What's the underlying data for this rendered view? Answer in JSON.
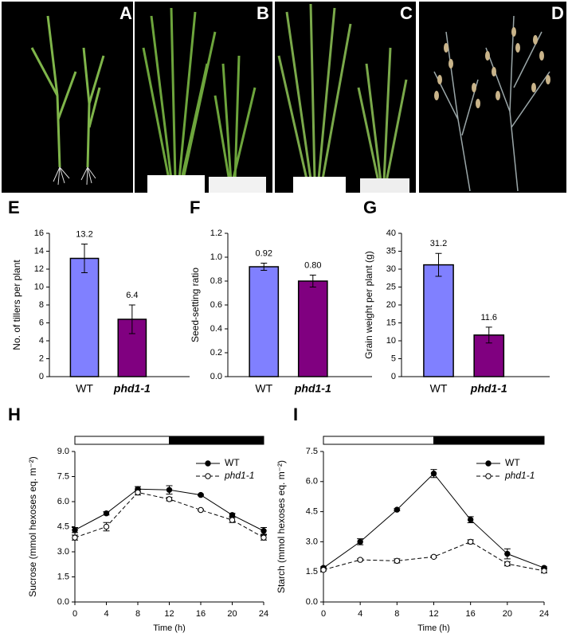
{
  "photo_panels": [
    "A",
    "B",
    "C",
    "D"
  ],
  "chart_data": [
    {
      "type": "bar",
      "panel_label": "E",
      "ylabel": "No. of tillers per plant",
      "categories": [
        "WT",
        "phd1-1"
      ],
      "values": [
        13.2,
        6.4
      ],
      "errors": [
        1.6,
        1.6
      ],
      "colors": [
        "#8080ff",
        "#800080"
      ],
      "ylim": [
        0,
        16
      ],
      "yticks": [
        0,
        2,
        4,
        6,
        8,
        10,
        12,
        14,
        16
      ]
    },
    {
      "type": "bar",
      "panel_label": "F",
      "ylabel": "Seed-setting ratio",
      "categories": [
        "WT",
        "phd1-1"
      ],
      "values": [
        0.92,
        0.8
      ],
      "value_labels": [
        "0.92",
        "0.80"
      ],
      "errors": [
        0.03,
        0.05
      ],
      "colors": [
        "#8080ff",
        "#800080"
      ],
      "ylim": [
        0,
        1.2
      ],
      "yticks": [
        {
          "value": 0,
          "label": "0.0"
        },
        0.2,
        0.4,
        0.6,
        0.8,
        {
          "value": 1,
          "label": "1.0"
        },
        1.2
      ]
    },
    {
      "type": "bar",
      "panel_label": "G",
      "ylabel": "Grain weight per plant (g)",
      "categories": [
        "WT",
        "phd1-1"
      ],
      "values": [
        31.2,
        11.6
      ],
      "errors": [
        3.2,
        2.2
      ],
      "colors": [
        "#8080ff",
        "#800080"
      ],
      "ylim": [
        0,
        40
      ],
      "yticks": [
        0,
        5,
        10,
        15,
        20,
        25,
        30,
        35,
        40
      ]
    },
    {
      "type": "line",
      "panel_label": "H",
      "ylabel": "Sucrose (mmol hexoses eq. m⁻²)",
      "xlabel": "Time (h)",
      "x": [
        0,
        4,
        8,
        12,
        16,
        20,
        24
      ],
      "xlim": [
        0,
        24
      ],
      "xticks": [
        0,
        4,
        8,
        12,
        16,
        20,
        24
      ],
      "ylim": [
        0,
        9
      ],
      "yticks": [
        {
          "value": 0,
          "label": "0.0"
        },
        1.5,
        {
          "value": 3,
          "label": "3.0"
        },
        4.5,
        {
          "value": 6,
          "label": "6.0"
        },
        7.5,
        {
          "value": 9,
          "label": "9.0"
        }
      ],
      "light_dark": {
        "light": [
          0,
          12
        ],
        "dark": [
          12,
          24
        ]
      },
      "legend": "upper right",
      "series": [
        {
          "name": "WT",
          "color": "#000000",
          "line_style": "solid",
          "marker_fill": "#000000",
          "values": [
            4.3,
            5.3,
            6.75,
            6.7,
            6.4,
            5.2,
            4.25
          ],
          "errors": [
            0.15,
            0.1,
            0.15,
            0.25,
            0.05,
            0.1,
            0.2
          ]
        },
        {
          "name": "phd1-1",
          "color": "#000000",
          "line_style": "dashed",
          "marker_fill": "#ffffff",
          "values": [
            3.85,
            4.5,
            6.55,
            6.15,
            5.5,
            4.9,
            3.85
          ],
          "errors": [
            0.15,
            0.25,
            0.15,
            0.1,
            0.05,
            0.15,
            0.15
          ]
        }
      ]
    },
    {
      "type": "line",
      "panel_label": "I",
      "ylabel": "Starch (mmol hexoses eq. m⁻²)",
      "xlabel": "Time (h)",
      "x": [
        0,
        4,
        8,
        12,
        16,
        20,
        24
      ],
      "xlim": [
        0,
        24
      ],
      "xticks": [
        0,
        4,
        8,
        12,
        16,
        20,
        24
      ],
      "ylim": [
        0,
        7.5
      ],
      "yticks": [
        {
          "value": 0,
          "label": "0.0"
        },
        1.5,
        {
          "value": 3,
          "label": "3.0"
        },
        4.5,
        {
          "value": 6,
          "label": "6.0"
        },
        7.5
      ],
      "light_dark": {
        "light": [
          0,
          12
        ],
        "dark": [
          12,
          24
        ]
      },
      "legend": "upper right",
      "series": [
        {
          "name": "WT",
          "color": "#000000",
          "line_style": "solid",
          "marker_fill": "#000000",
          "values": [
            1.7,
            3.0,
            4.6,
            6.4,
            4.1,
            2.4,
            1.7
          ],
          "errors": [
            0.05,
            0.15,
            0.05,
            0.2,
            0.15,
            0.25,
            0.05
          ]
        },
        {
          "name": "phd1-1",
          "color": "#000000",
          "line_style": "dashed",
          "marker_fill": "#ffffff",
          "values": [
            1.6,
            2.1,
            2.05,
            2.25,
            3.0,
            1.9,
            1.55
          ],
          "errors": [
            0.05,
            0.05,
            0.1,
            0.05,
            0.1,
            0.1,
            0.1
          ]
        }
      ]
    }
  ]
}
